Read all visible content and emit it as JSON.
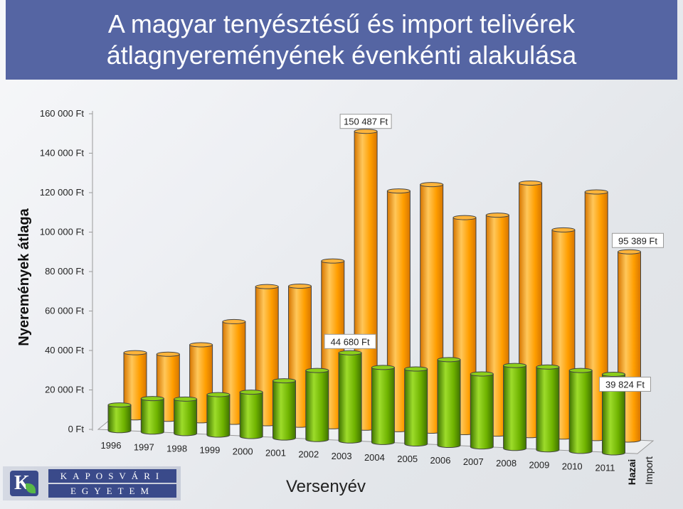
{
  "title_lines": [
    "A magyar tenyésztésű és import telivérek",
    "átlagnyereményének évenkénti alakulása"
  ],
  "logo": {
    "line1": "KAPOSVÁRI",
    "line2": "EGYETEM"
  },
  "chart_data": {
    "type": "bar",
    "subtype": "3d-cylinder-grouped",
    "title": "A magyar tenyésztésű és import telivérek átlagnyereményének évenkénti alakulása",
    "xlabel": "Versenyév",
    "ylabel": "Nyeremények átlaga",
    "ylim": [
      0,
      160000
    ],
    "y_ticks": [
      0,
      20000,
      40000,
      60000,
      80000,
      100000,
      120000,
      140000,
      160000
    ],
    "y_tick_labels": [
      "0 Ft",
      "20 000 Ft",
      "40 000 Ft",
      "60 000 Ft",
      "80 000 Ft",
      "100 000 Ft",
      "120 000 Ft",
      "140 000 Ft",
      "160 000 Ft"
    ],
    "categories": [
      "1996",
      "1997",
      "1998",
      "1999",
      "2000",
      "2001",
      "2002",
      "2003",
      "2004",
      "2005",
      "2006",
      "2007",
      "2008",
      "2009",
      "2010",
      "2011"
    ],
    "series": [
      {
        "name": "Hazai",
        "color": "#6fb300",
        "values": [
          13000,
          17000,
          17500,
          20500,
          22500,
          29000,
          35000,
          44680,
          38000,
          38000,
          43500,
          37000,
          42000,
          42000,
          41000,
          39824
        ]
      },
      {
        "name": "Import",
        "color": "#ff9e00",
        "values": [
          33000,
          33000,
          38500,
          51000,
          69500,
          70500,
          84000,
          150487,
          121000,
          125000,
          109000,
          111000,
          128000,
          105000,
          125000,
          95389
        ]
      }
    ],
    "data_labels": [
      {
        "series": "Import",
        "category": "2003",
        "text": "150 487 Ft"
      },
      {
        "series": "Import",
        "category": "2011",
        "text": "95 389 Ft"
      },
      {
        "series": "Hazai",
        "category": "2003",
        "text": "44 680 Ft"
      },
      {
        "series": "Hazai",
        "category": "2011",
        "text": "39 824 Ft"
      }
    ],
    "grid": false,
    "legend_placement": "bottom-right (depth axis)"
  }
}
